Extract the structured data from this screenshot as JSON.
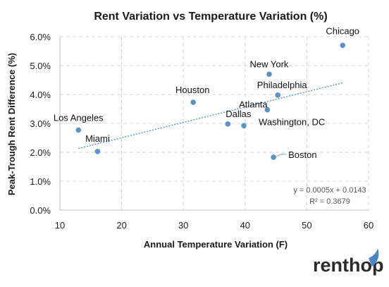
{
  "chart_data": {
    "type": "scatter",
    "title": "Rent Variation vs Temperature Variation (%)",
    "xlabel": "Annual Temperature Variation (F)",
    "ylabel": "Peak-Trough Rent Difference (%)",
    "xlim": [
      10,
      60
    ],
    "ylim": [
      0,
      6
    ],
    "x_ticks": [
      10,
      20,
      30,
      40,
      50,
      60
    ],
    "y_ticks": [
      0,
      1,
      2,
      3,
      4,
      5,
      6
    ],
    "x_tick_labels": [
      "10",
      "20",
      "30",
      "40",
      "50",
      "60"
    ],
    "y_tick_labels": [
      "0.0%",
      "1.0%",
      "2.0%",
      "3.0%",
      "4.0%",
      "5.0%",
      "6.0%"
    ],
    "grid": true,
    "point_color": "#5b93c8",
    "trend_color": "#5b93c8",
    "points": [
      {
        "label": "Chicago",
        "x": 55.8,
        "y": 5.7
      },
      {
        "label": "New York",
        "x": 43.9,
        "y": 4.7
      },
      {
        "label": "Philadelphia",
        "x": 45.3,
        "y": 3.98
      },
      {
        "label": "Houston",
        "x": 31.6,
        "y": 3.73
      },
      {
        "label": "Atlanta",
        "x": 43.6,
        "y": 3.47
      },
      {
        "label": "Los Angeles",
        "x": 13.0,
        "y": 2.77
      },
      {
        "label": "Dallas",
        "x": 37.2,
        "y": 2.98
      },
      {
        "label": "Washington, DC",
        "x": 39.8,
        "y": 2.92
      },
      {
        "label": "Miami",
        "x": 16.1,
        "y": 2.03
      },
      {
        "label": "Boston",
        "x": 44.6,
        "y": 1.83
      }
    ],
    "trendline": {
      "equation": "y = 0.0005x + 0.0143",
      "r_squared": "R² = 0.3679",
      "x_range": [
        13.0,
        55.8
      ]
    },
    "logo_text": "renthop"
  }
}
